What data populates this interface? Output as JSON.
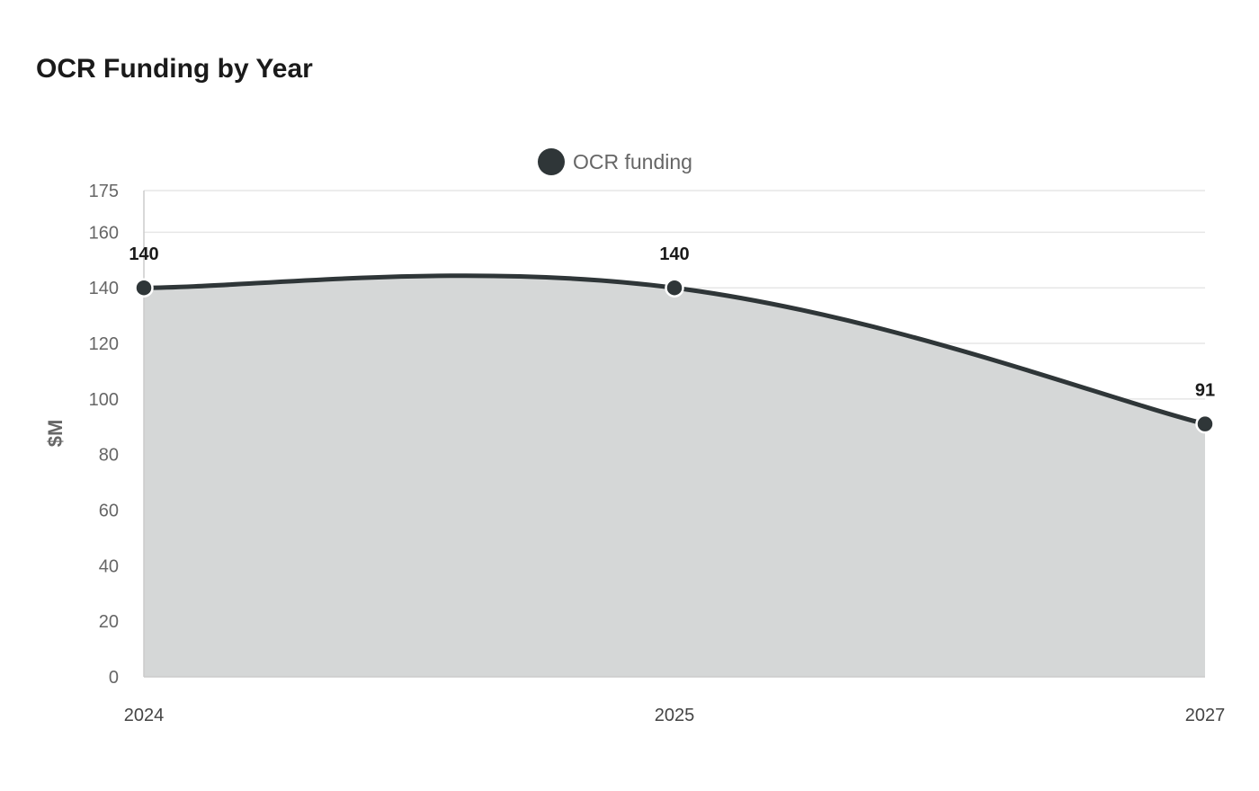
{
  "chart_data": {
    "type": "area",
    "title": "OCR Funding by Year",
    "xlabel": "",
    "ylabel": "$M",
    "categories": [
      "2024",
      "2025",
      "2027"
    ],
    "series": [
      {
        "name": "OCR funding",
        "values": [
          140,
          140,
          91
        ],
        "color": "#2f3638"
      }
    ],
    "ylim": [
      0,
      175
    ],
    "yticks": [
      0,
      20,
      40,
      60,
      80,
      100,
      120,
      140,
      160,
      175
    ],
    "grid": true,
    "legend": "top-center",
    "area_fill": "#d5d7d7",
    "smooth": true,
    "data_labels": true
  }
}
